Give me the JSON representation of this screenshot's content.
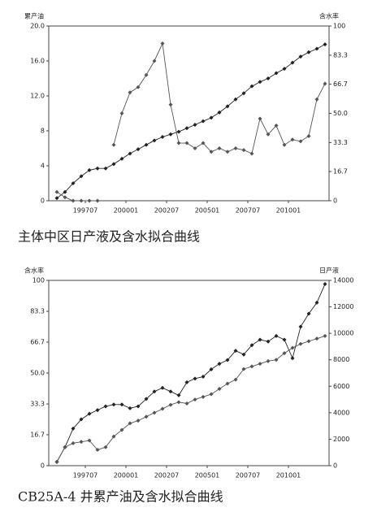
{
  "chart_data": [
    {
      "type": "line",
      "title": "主体中区日产液及含水拟合曲线",
      "ylabel": "累产油",
      "y2label": "含水率",
      "xlim": [
        "199504",
        "201207"
      ],
      "xticks": [
        "199707",
        "200001",
        "200207",
        "200501",
        "200707",
        "201001"
      ],
      "x": [
        "199510",
        "199604",
        "199610",
        "199704",
        "199710",
        "199804",
        "199810",
        "199904",
        "199910",
        "200004",
        "200010",
        "200104",
        "200110",
        "200204",
        "200210",
        "200304",
        "200310",
        "200404",
        "200410",
        "200504",
        "200510",
        "200604",
        "200610",
        "200704",
        "200710",
        "200804",
        "200810",
        "200904",
        "200910",
        "201004",
        "201010",
        "201104",
        "201110",
        "201204"
      ],
      "ylim": [
        0,
        20
      ],
      "yticks": [
        0,
        4,
        8,
        {
          "value": 12,
          "label": "12.0"
        },
        {
          "value": 16,
          "label": "16.0"
        },
        {
          "value": 20,
          "label": "20.0"
        }
      ],
      "y2lim": [
        0,
        100
      ],
      "y2ticks": [
        0,
        16.7,
        33.3,
        {
          "value": 50,
          "label": "50.0"
        },
        66.7,
        83.3,
        100
      ],
      "series": [
        {
          "color": "#222222",
          "values": [
            0.3,
            1.0,
            2.0,
            2.8,
            3.5,
            3.7,
            3.7,
            4.2,
            4.8,
            5.4,
            5.9,
            6.4,
            6.9,
            7.3,
            7.6,
            7.9,
            8.3,
            8.7,
            9.1,
            9.5,
            10.1,
            10.8,
            11.6,
            12.3,
            13.1,
            13.6,
            14.0,
            14.6,
            15.1,
            15.8,
            16.5,
            17.0,
            17.4,
            17.9
          ]
        },
        {
          "color": "#555555",
          "axis": "y2",
          "values": [
            5,
            2,
            0,
            0,
            0,
            0,
            null,
            32,
            50,
            62,
            65,
            72,
            80,
            90,
            55,
            33,
            33,
            30,
            33,
            28,
            30,
            28,
            30,
            29,
            27,
            47,
            38,
            43,
            32,
            35,
            34,
            37,
            58,
            67
          ]
        }
      ]
    },
    {
      "type": "line",
      "title": "CB25A-4 井累产油及含水拟合曲线",
      "ylabel": "含水率",
      "y2label": "日产液",
      "xlim": [
        "199504",
        "201207"
      ],
      "xticks": [
        "199707",
        "200001",
        "200207",
        "200501",
        "200707",
        "201001"
      ],
      "x": [
        "199510",
        "199604",
        "199610",
        "199704",
        "199710",
        "199804",
        "199810",
        "199904",
        "199910",
        "200004",
        "200010",
        "200104",
        "200110",
        "200204",
        "200210",
        "200304",
        "200310",
        "200404",
        "200410",
        "200504",
        "200510",
        "200604",
        "200610",
        "200704",
        "200710",
        "200804",
        "200810",
        "200904",
        "200910",
        "201004",
        "201010",
        "201104",
        "201110",
        "201204"
      ],
      "ylim": [
        0,
        100
      ],
      "yticks": [
        0,
        16.7,
        33.3,
        {
          "value": 50,
          "label": "50.0"
        },
        66.7,
        83.3,
        100
      ],
      "y2lim": [
        0,
        14000
      ],
      "y2ticks": [
        0,
        2000,
        4000,
        6000,
        8000,
        10000,
        12000,
        14000
      ],
      "series": [
        {
          "color": "#222222",
          "values": [
            2,
            10,
            20,
            25,
            28,
            30,
            32,
            33,
            33,
            31,
            32,
            36,
            40,
            42,
            40,
            38,
            45,
            47,
            48,
            52,
            55,
            57,
            62,
            60,
            65,
            68,
            67,
            70,
            68,
            58,
            75,
            82,
            88,
            98
          ]
        },
        {
          "color": "#555555",
          "axis": "y2",
          "values": [
            300,
            1400,
            1700,
            1800,
            1900,
            1200,
            1400,
            2200,
            2700,
            3200,
            3400,
            3700,
            4000,
            4300,
            4600,
            4800,
            4700,
            5000,
            5200,
            5400,
            5800,
            6200,
            6500,
            7300,
            7500,
            7700,
            7900,
            8000,
            8500,
            8900,
            9200,
            9400,
            9600,
            9800
          ]
        }
      ]
    }
  ]
}
